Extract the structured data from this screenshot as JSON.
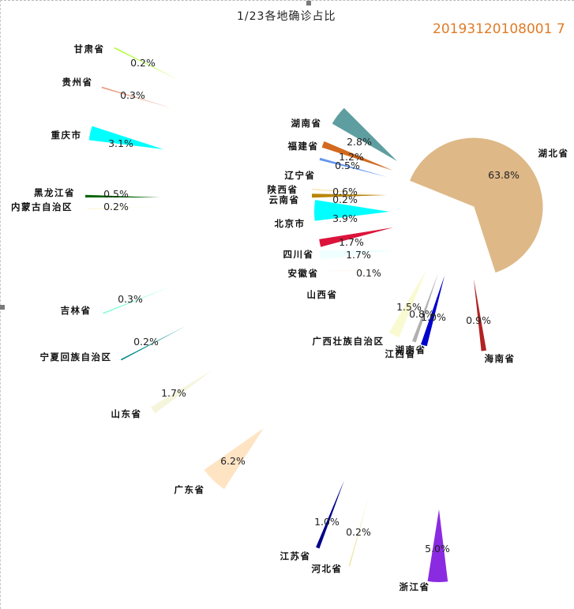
{
  "title": "1/23各地确诊占比",
  "stamp": "20193120108001 7",
  "chart_data": {
    "type": "pie",
    "title": "1/23各地确诊占比",
    "legend": "none",
    "slices": [
      {
        "name": "湖北省",
        "value": 63.8,
        "label": "63.8%",
        "color": "#deb887"
      },
      {
        "name": "海南省",
        "value": 0.9,
        "label": "0.9%",
        "color": "#b22222"
      },
      {
        "name": "江西省",
        "value": 1.0,
        "label": "1.0%",
        "color": "#0000cd"
      },
      {
        "name": "湖南省",
        "value": 0.8,
        "label": "0.8%",
        "color": "#b0b0b0"
      },
      {
        "name": "广西壮族自治区",
        "value": 1.5,
        "label": "1.5%",
        "color": "#fafad2"
      },
      {
        "name": "浙江省",
        "value": 5.0,
        "label": "5.0%",
        "color": "#8a2be2"
      },
      {
        "name": "河北省",
        "value": 0.2,
        "label": "0.2%",
        "color": "#eee8aa"
      },
      {
        "name": "江苏省",
        "value": 1.0,
        "label": "1.0%",
        "color": "#00008b"
      },
      {
        "name": "广东省",
        "value": 6.2,
        "label": "6.2%",
        "color": "#ffe4c4"
      },
      {
        "name": "山东省",
        "value": 1.7,
        "label": "1.7%",
        "color": "#f5f5dc"
      },
      {
        "name": "宁夏回族自治区",
        "value": 0.2,
        "label": "0.2%",
        "color": "#008b8b"
      },
      {
        "name": "吉林省",
        "value": 0.3,
        "label": "0.3%",
        "color": "#7fffd4"
      },
      {
        "name": "内蒙古自治区",
        "value": 0.2,
        "label": "0.2%",
        "color": "#fff8dc"
      },
      {
        "name": "黑龙江省",
        "value": 0.5,
        "label": "0.5%",
        "color": "#006400"
      },
      {
        "name": "重庆市",
        "value": 3.1,
        "label": "3.1%",
        "color": "#00ffff"
      },
      {
        "name": "贵州省",
        "value": 0.3,
        "label": "0.3%",
        "color": "#e9967a"
      },
      {
        "name": "甘肃省",
        "value": 0.2,
        "label": "0.2%",
        "color": "#adff2f"
      },
      {
        "name": "山西省",
        "value": 0.1,
        "label": "0.1%",
        "color": "#fffaf0"
      },
      {
        "name": "安徽省",
        "value": 1.7,
        "label": "1.7%",
        "color": "#f0ffff"
      },
      {
        "name": "四川省",
        "value": 1.7,
        "label": "1.7%",
        "color": "#dc143c"
      },
      {
        "name": "北京市",
        "value": 3.9,
        "label": "3.9%",
        "color": "#00ffff"
      },
      {
        "name": "云南省",
        "value": 0.2,
        "label": "0.2%",
        "color": "#ffe4b5"
      },
      {
        "name": "陕西省",
        "value": 0.6,
        "label": "0.6%",
        "color": "#b8860b"
      },
      {
        "name": "辽宁省",
        "value": 0.5,
        "label": "0.5%",
        "color": "#6495ed"
      },
      {
        "name": "福建省",
        "value": 1.2,
        "label": "1.2%",
        "color": "#d2691e"
      },
      {
        "name": "湖南省",
        "value": 2.8,
        "label": "2.8%",
        "color": "#5f9ea0"
      }
    ]
  }
}
